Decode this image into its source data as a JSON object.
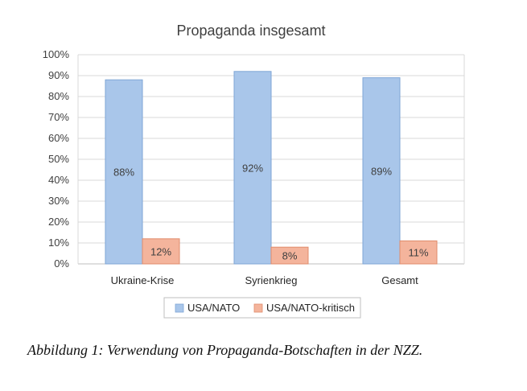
{
  "chart_data": {
    "type": "bar",
    "title": "Propaganda insgesamt",
    "categories": [
      "Ukraine-Krise",
      "Syrienkrieg",
      "Gesamt"
    ],
    "series": [
      {
        "name": "USA/NATO",
        "values": [
          88,
          92,
          89
        ],
        "labels": [
          "88%",
          "92%",
          "89%"
        ],
        "color": "#a9c6ea"
      },
      {
        "name": "USA/NATO-kritisch",
        "values": [
          12,
          8,
          11
        ],
        "labels": [
          "12%",
          "8%",
          "11%"
        ],
        "color": "#f4b49c"
      }
    ],
    "ylim": [
      0,
      100
    ],
    "yticks": [
      "0%",
      "10%",
      "20%",
      "30%",
      "40%",
      "50%",
      "60%",
      "70%",
      "80%",
      "90%",
      "100%"
    ],
    "grid": true,
    "legend": "bottom"
  },
  "caption": "Abbildung 1: Verwendung von Propaganda-Botschaften in der NZZ."
}
